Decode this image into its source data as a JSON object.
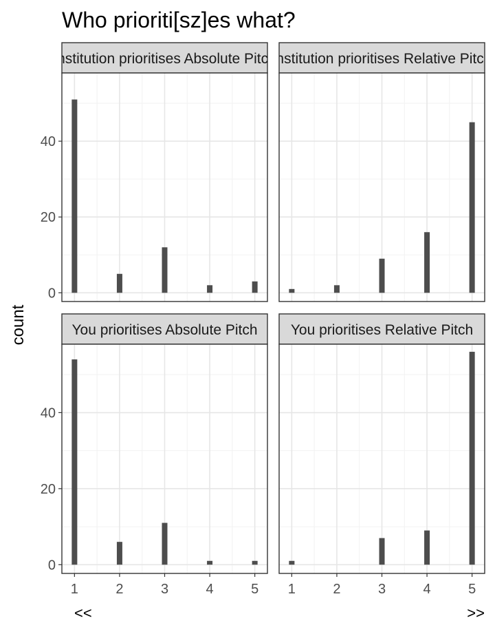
{
  "chart_data": {
    "type": "bar",
    "title": "Who prioriti[sz]es what?",
    "xlabel": "",
    "ylabel": "count",
    "x_ticks": [
      "1",
      "2",
      "3",
      "4",
      "5"
    ],
    "y_ticks": [
      "0",
      "20",
      "40"
    ],
    "ylim": [
      0,
      58
    ],
    "x_annotations": {
      "left": "<<",
      "right": ">>"
    },
    "grid": true,
    "legend": "none",
    "bar_color": "#4d4d4d",
    "panels": [
      {
        "label": "Institution prioritises Absolute Pitch",
        "x": [
          1,
          2,
          3,
          4,
          5
        ],
        "values": [
          51,
          5,
          12,
          2,
          3
        ]
      },
      {
        "label": "Institution prioritises Relative Pitch",
        "x": [
          1,
          2,
          3,
          4,
          5
        ],
        "values": [
          1,
          2,
          9,
          16,
          45
        ]
      },
      {
        "label": "You prioritises Absolute Pitch",
        "x": [
          1,
          2,
          3,
          4,
          5
        ],
        "values": [
          54,
          6,
          11,
          1,
          1
        ]
      },
      {
        "label": "You prioritises Relative Pitch",
        "x": [
          1,
          2,
          3,
          4,
          5
        ],
        "values": [
          1,
          0,
          7,
          9,
          56
        ]
      }
    ]
  }
}
